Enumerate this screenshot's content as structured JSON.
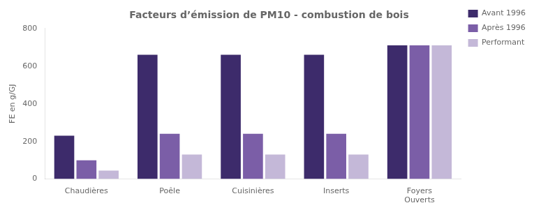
{
  "chart_data": {
    "type": "bar",
    "title": "Facteurs d’émission de PM10 - combustion de bois",
    "ylabel": "FE en g/GJ",
    "categories": [
      "Chaudières",
      "Poêle",
      "Cuisinières",
      "Inserts",
      "Foyers\nOuverts"
    ],
    "series": [
      {
        "name": "Avant 1996",
        "color": "#3d2b6b",
        "values": [
          230,
          660,
          660,
          660,
          710
        ]
      },
      {
        "name": "Après 1996",
        "color": "#7b5ea7",
        "values": [
          100,
          240,
          240,
          240,
          710
        ]
      },
      {
        "name": "Performant",
        "color": "#c4b8d8",
        "values": [
          45,
          130,
          130,
          130,
          710
        ]
      }
    ],
    "ylim": [
      0,
      800
    ],
    "yticks": [
      0,
      200,
      400,
      600,
      800
    ],
    "grid": false,
    "legend": "right"
  }
}
